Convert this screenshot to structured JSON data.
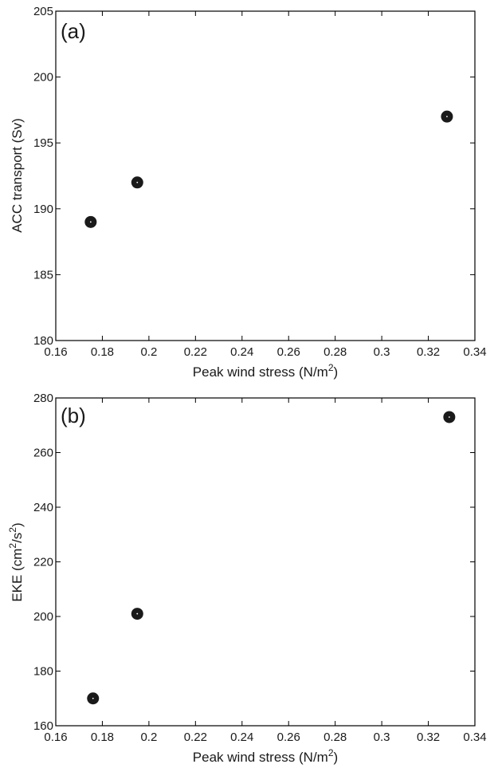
{
  "chart_data": [
    {
      "type": "scatter",
      "panel_label": "(a)",
      "xlabel": "Peak wind stress (N/m",
      "xlabel_sup": "2",
      "xlabel_end": ")",
      "ylabel": "ACC transport (Sv)",
      "xlim": [
        0.16,
        0.34
      ],
      "ylim": [
        180,
        205
      ],
      "xticks": [
        0.16,
        0.18,
        0.2,
        0.22,
        0.24,
        0.26,
        0.28,
        0.3,
        0.32,
        0.34
      ],
      "xtick_labels": [
        "0.16",
        "0.18",
        "0.2",
        "0.22",
        "0.24",
        "0.26",
        "0.28",
        "0.3",
        "0.32",
        "0.34"
      ],
      "yticks": [
        180,
        185,
        190,
        195,
        200,
        205
      ],
      "ytick_labels": [
        "180",
        "185",
        "190",
        "195",
        "200",
        "205"
      ],
      "points": [
        {
          "x": 0.175,
          "y": 189
        },
        {
          "x": 0.195,
          "y": 192
        },
        {
          "x": 0.328,
          "y": 197
        }
      ],
      "grid": false,
      "marker_color": "#1a1a1a"
    },
    {
      "type": "scatter",
      "panel_label": "(b)",
      "xlabel": "Peak wind stress (N/m",
      "xlabel_sup": "2",
      "xlabel_end": ")",
      "ylabel": "EKE (cm",
      "ylabel_sup1": "2",
      "ylabel_mid": "/s",
      "ylabel_sup2": "2",
      "ylabel_end": ")",
      "xlim": [
        0.16,
        0.34
      ],
      "ylim": [
        160,
        280
      ],
      "xticks": [
        0.16,
        0.18,
        0.2,
        0.22,
        0.24,
        0.26,
        0.28,
        0.3,
        0.32,
        0.34
      ],
      "xtick_labels": [
        "0.16",
        "0.18",
        "0.2",
        "0.22",
        "0.24",
        "0.26",
        "0.28",
        "0.3",
        "0.32",
        "0.34"
      ],
      "yticks": [
        160,
        180,
        200,
        220,
        240,
        260,
        280
      ],
      "ytick_labels": [
        "160",
        "180",
        "200",
        "220",
        "240",
        "260",
        "280"
      ],
      "points": [
        {
          "x": 0.176,
          "y": 170
        },
        {
          "x": 0.195,
          "y": 201
        },
        {
          "x": 0.329,
          "y": 273
        }
      ],
      "grid": false,
      "marker_color": "#1a1a1a"
    }
  ]
}
